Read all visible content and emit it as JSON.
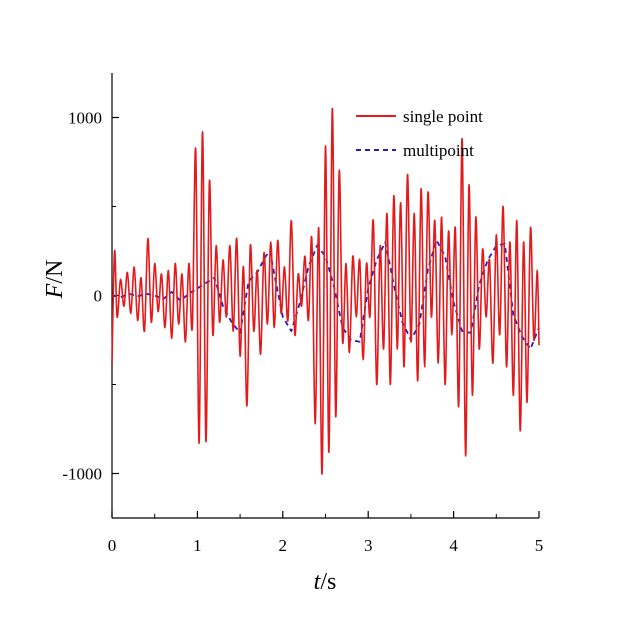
{
  "chart_data": {
    "type": "line",
    "title": "",
    "xlabel": {
      "italic": "t",
      "rest": "/s"
    },
    "ylabel": {
      "italic": "F",
      "rest": "/N"
    },
    "xlim": [
      0,
      5
    ],
    "ylim": [
      -1250,
      1250
    ],
    "xticks": [
      0,
      1,
      2,
      3,
      4,
      5
    ],
    "xtick_labels": [
      "0",
      "1",
      "2",
      "3",
      "4",
      "5"
    ],
    "yticks": [
      -1000,
      0,
      1000
    ],
    "ytick_labels": [
      "-1000",
      "0",
      "1000"
    ],
    "grid": false,
    "legend_position": "top-right",
    "series": [
      {
        "name": "single point",
        "color": "#e31a1c",
        "style": "solid",
        "x": [
          0,
          0.03,
          0.06,
          0.1,
          0.14,
          0.18,
          0.22,
          0.26,
          0.3,
          0.34,
          0.38,
          0.42,
          0.46,
          0.5,
          0.54,
          0.58,
          0.62,
          0.66,
          0.7,
          0.74,
          0.78,
          0.82,
          0.86,
          0.9,
          0.94,
          0.98,
          1.02,
          1.06,
          1.1,
          1.14,
          1.18,
          1.22,
          1.26,
          1.3,
          1.34,
          1.38,
          1.42,
          1.46,
          1.5,
          1.54,
          1.58,
          1.62,
          1.66,
          1.7,
          1.74,
          1.78,
          1.82,
          1.86,
          1.9,
          1.94,
          1.98,
          2.02,
          2.06,
          2.1,
          2.14,
          2.18,
          2.22,
          2.26,
          2.3,
          2.34,
          2.38,
          2.42,
          2.46,
          2.5,
          2.54,
          2.58,
          2.62,
          2.66,
          2.7,
          2.74,
          2.78,
          2.82,
          2.86,
          2.9,
          2.94,
          2.98,
          3.02,
          3.06,
          3.1,
          3.14,
          3.18,
          3.22,
          3.26,
          3.3,
          3.34,
          3.38,
          3.42,
          3.46,
          3.5,
          3.54,
          3.58,
          3.62,
          3.66,
          3.7,
          3.74,
          3.78,
          3.82,
          3.86,
          3.9,
          3.94,
          3.98,
          4.02,
          4.06,
          4.1,
          4.14,
          4.18,
          4.22,
          4.26,
          4.3,
          4.34,
          4.38,
          4.42,
          4.46,
          4.5,
          4.54,
          4.58,
          4.62,
          4.66,
          4.7,
          4.74,
          4.78,
          4.82,
          4.86,
          4.9,
          4.94,
          4.98,
          5.0
        ],
        "y": [
          -380,
          250,
          -120,
          90,
          -60,
          130,
          -100,
          160,
          -140,
          100,
          -200,
          320,
          -150,
          180,
          -90,
          120,
          -180,
          140,
          -240,
          180,
          -160,
          120,
          -260,
          180,
          -180,
          820,
          -830,
          920,
          -820,
          640,
          -220,
          280,
          -150,
          200,
          -120,
          280,
          -200,
          320,
          -340,
          160,
          -620,
          280,
          -200,
          140,
          -330,
          240,
          -160,
          300,
          -180,
          310,
          -100,
          160,
          -140,
          420,
          -220,
          120,
          -60,
          220,
          -140,
          320,
          -720,
          380,
          -1000,
          840,
          -880,
          1050,
          -680,
          700,
          -260,
          180,
          -320,
          220,
          -120,
          200,
          -360,
          180,
          -120,
          420,
          -500,
          280,
          -300,
          460,
          -500,
          560,
          -300,
          520,
          -400,
          680,
          -260,
          460,
          -480,
          600,
          -400,
          580,
          -120,
          420,
          -380,
          440,
          -500,
          360,
          -220,
          380,
          -620,
          880,
          -900,
          620,
          -560,
          440,
          -300,
          260,
          -120,
          200,
          -380,
          340,
          -220,
          500,
          -400,
          300,
          -560,
          420,
          -760,
          300,
          -600,
          380,
          -250,
          140,
          -280
        ]
      },
      {
        "name": "multipoint",
        "color": "#1f1fbf",
        "style": "dashed",
        "x": [
          0,
          0.1,
          0.2,
          0.3,
          0.4,
          0.5,
          0.6,
          0.7,
          0.8,
          0.9,
          1.0,
          1.1,
          1.2,
          1.3,
          1.4,
          1.5,
          1.6,
          1.7,
          1.8,
          1.85,
          1.9,
          2.0,
          2.1,
          2.2,
          2.3,
          2.4,
          2.5,
          2.6,
          2.7,
          2.8,
          2.9,
          3.0,
          3.1,
          3.2,
          3.3,
          3.4,
          3.5,
          3.6,
          3.7,
          3.8,
          3.9,
          4.0,
          4.1,
          4.2,
          4.3,
          4.4,
          4.5,
          4.6,
          4.7,
          4.8,
          4.9,
          5.0
        ],
        "y": [
          0,
          -10,
          10,
          -5,
          10,
          0,
          -20,
          20,
          -30,
          10,
          40,
          70,
          100,
          -60,
          -150,
          -210,
          80,
          130,
          220,
          250,
          120,
          -120,
          -200,
          -40,
          160,
          280,
          220,
          50,
          -180,
          -250,
          -260,
          40,
          200,
          300,
          60,
          -150,
          -250,
          -160,
          150,
          310,
          220,
          -40,
          -200,
          -210,
          60,
          200,
          280,
          290,
          -110,
          -230,
          -300,
          -180
        ]
      }
    ]
  }
}
